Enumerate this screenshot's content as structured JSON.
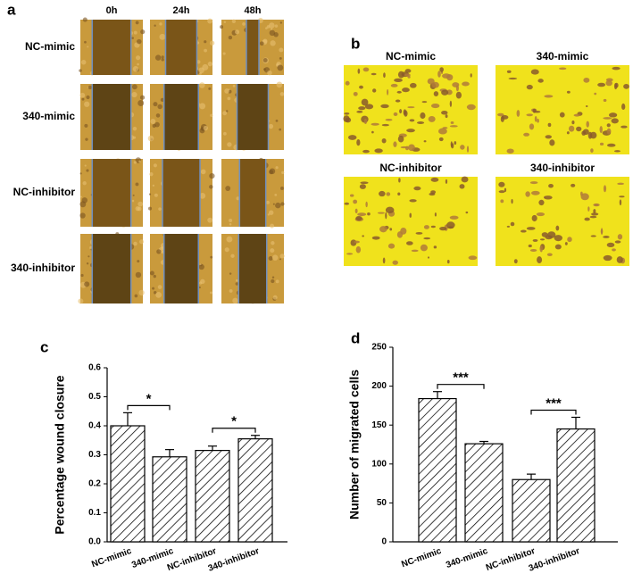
{
  "panel_a": {
    "label": "a",
    "columns": [
      "0h",
      "24h",
      "48h"
    ],
    "rows": [
      "NC-mimic",
      "340-mimic",
      "NC-inhibitor",
      "340-inhibitor"
    ]
  },
  "panel_b": {
    "label": "b",
    "images": [
      "NC-mimic",
      "340-mimic",
      "NC-inhibitor",
      "340-inhibitor"
    ]
  },
  "chart_data": [
    {
      "type": "bar",
      "label": "c",
      "y_label": "Percentage wound closure",
      "categories": [
        "NC-mimic",
        "340-mimic",
        "NC-inhibitor",
        "340-inhibitor"
      ],
      "values": [
        0.4,
        0.293,
        0.315,
        0.355
      ],
      "errors": [
        0.045,
        0.025,
        0.015,
        0.012
      ],
      "ylim": [
        0,
        0.6
      ],
      "yticks": [
        {
          "value": 0,
          "label": "0.0"
        },
        0.1,
        0.2,
        0.3,
        0.4,
        0.5,
        0.6
      ],
      "annotations": [
        {
          "text": "*",
          "from": 0,
          "to": 1
        },
        {
          "text": "*",
          "from": 2,
          "to": 3
        }
      ]
    },
    {
      "type": "bar",
      "label": "d",
      "y_label": "Number of migrated cells",
      "categories": [
        "NC-mimic",
        "340-mimic",
        "NC-inhibitor",
        "340-inhibitor"
      ],
      "values": [
        184,
        126,
        80,
        145
      ],
      "errors": [
        9,
        3,
        7,
        15
      ],
      "ylim": [
        0,
        250
      ],
      "yticks": [
        0,
        50,
        100,
        150,
        200,
        250
      ],
      "annotations": [
        {
          "text": "***",
          "from": 0,
          "to": 1
        },
        {
          "text": "***",
          "from": 2,
          "to": 3
        }
      ]
    }
  ]
}
